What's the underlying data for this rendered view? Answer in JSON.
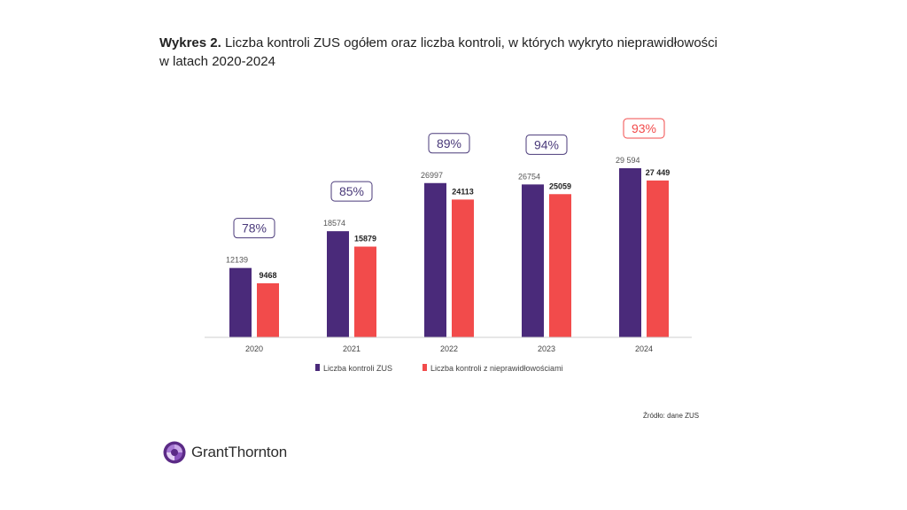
{
  "header": {
    "title_bold": "Wykres 2.",
    "title_rest": " Liczba kontroli ZUS ogółem oraz liczba kontroli, w których wykryto nieprawidłowości",
    "title_line2": "w latach 2020-2024"
  },
  "source": "Źródło: dane ZUS",
  "logo": {
    "text": "GrantThornton",
    "icon": "grant-thornton-logo-icon"
  },
  "colors": {
    "series1": "#4a2a7a",
    "series2": "#f24b4b",
    "pct_default": "#4a3a7a",
    "pct_highlight": "#f24b4b"
  },
  "chart_data": {
    "type": "bar",
    "title": "Liczba kontroli ZUS ogółem oraz liczba kontroli, w których wykryto nieprawidłowości w latach 2020-2024",
    "xlabel": "",
    "ylabel": "",
    "categories": [
      "2020",
      "2021",
      "2022",
      "2023",
      "2024"
    ],
    "series": [
      {
        "name": "Liczba kontroli ZUS",
        "values": [
          12139,
          18574,
          26997,
          26754,
          29594
        ],
        "labels": [
          "12139",
          "18574",
          "26997",
          "26754",
          "29 594"
        ]
      },
      {
        "name": "Liczba kontroli z nieprawidłowościami",
        "values": [
          9468,
          15879,
          24113,
          25059,
          27449
        ],
        "labels": [
          "9468",
          "15879",
          "24113",
          "25059",
          "27 449"
        ]
      }
    ],
    "percentages": [
      "78%",
      "85%",
      "89%",
      "94%",
      "93%"
    ],
    "highlight_index": 4,
    "ylim": [
      0,
      29594
    ],
    "grid": false,
    "legend": "bottom-center"
  }
}
